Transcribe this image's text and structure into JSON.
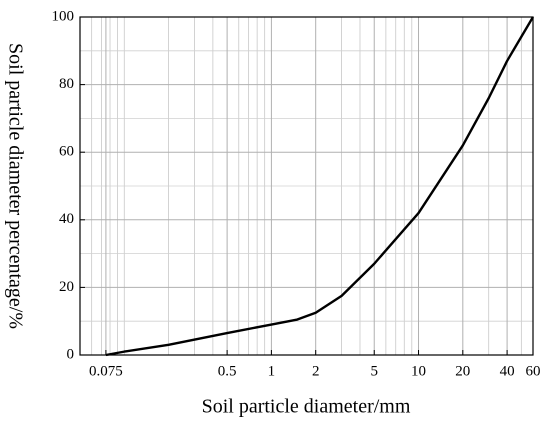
{
  "chart_data": {
    "type": "line",
    "log_x": true,
    "grid": true,
    "xlabel": "Soil particle diameter/mm",
    "ylabel": "Soil particle diameter percentage/%",
    "x": [
      0.075,
      0.1,
      0.2,
      0.5,
      1,
      1.5,
      2,
      3,
      5,
      10,
      20,
      30,
      40,
      60
    ],
    "series": [
      {
        "color": "#000000",
        "values": [
          0,
          1,
          3,
          6.5,
          9,
          10.5,
          12.5,
          17.5,
          27,
          42,
          62,
          76,
          87,
          100
        ]
      }
    ],
    "xlim": [
      0.05,
      60
    ],
    "xticks": [
      0.075,
      0.5,
      1,
      2,
      5,
      10,
      20,
      40,
      60
    ],
    "xminorticks": [
      0.06,
      0.07,
      0.08,
      0.09,
      0.1,
      0.2,
      0.3,
      0.4,
      0.6,
      0.7,
      0.8,
      0.9,
      3,
      4,
      6,
      7,
      8,
      9,
      30,
      50
    ],
    "ylim": [
      0,
      100
    ],
    "yticks": [
      0,
      20,
      40,
      60,
      80,
      100
    ],
    "yminorticks": [
      10,
      30,
      50,
      70,
      90
    ]
  }
}
